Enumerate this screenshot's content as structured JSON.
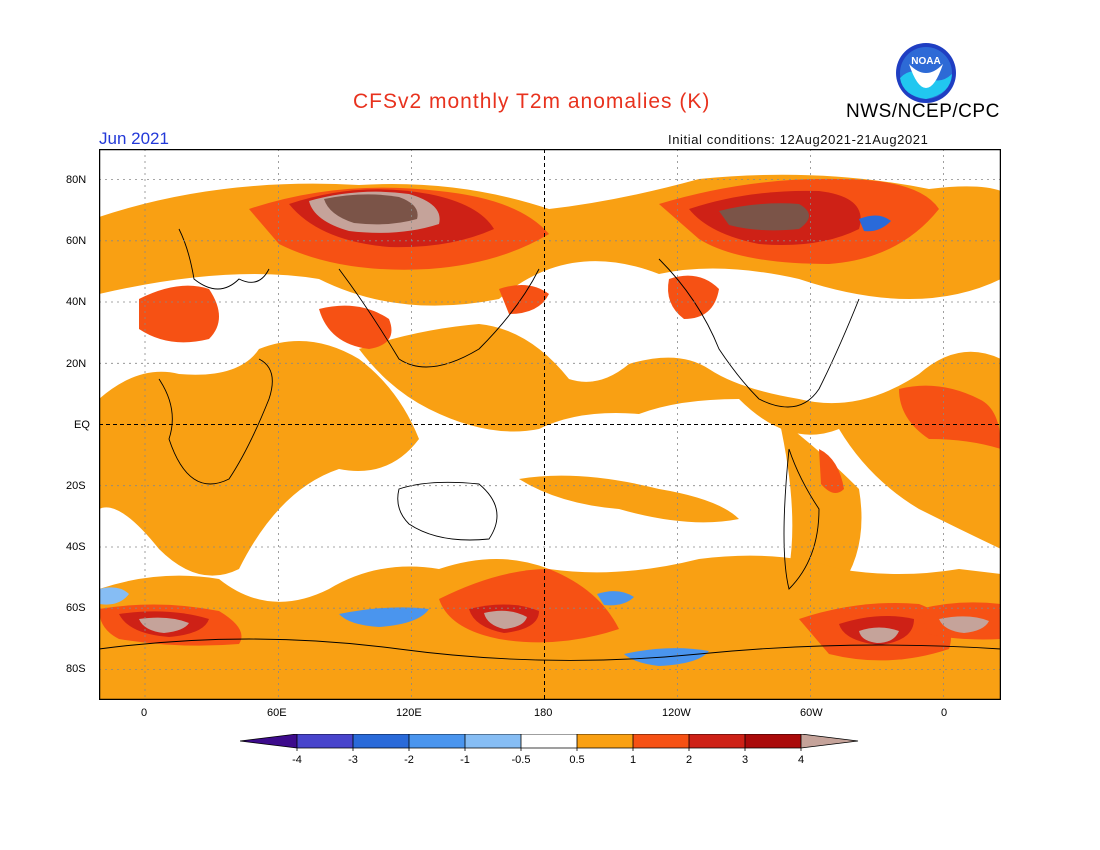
{
  "title": "CFSv2 monthly T2m anomalies (K)",
  "agency": "NWS/NCEP/CPC",
  "logo_text": "NOAA",
  "valid_month": "Jun 2021",
  "initial_conditions": "Initial conditions: 12Aug2021-21Aug2021",
  "map": {
    "projection": "equirectangular",
    "lon_center": "180",
    "lat_labels": [
      "80N",
      "60N",
      "40N",
      "20N",
      "EQ",
      "20S",
      "40S",
      "60S",
      "80S"
    ],
    "lon_labels": [
      "0",
      "60E",
      "120E",
      "180",
      "120W",
      "60W",
      "0"
    ]
  },
  "legend": {
    "ticks": [
      "-4",
      "-3",
      "-2",
      "-1",
      "-0.5",
      "0.5",
      "1",
      "2",
      "3",
      "4"
    ],
    "colors": [
      "#3d0b8c",
      "#4844cc",
      "#2a6ad9",
      "#4a95ee",
      "#86bdf4",
      "#ffffff",
      "#f9a013",
      "#f65114",
      "#ce2116",
      "#aa0a0a",
      "#c5a39a",
      "#7b5448"
    ]
  },
  "colors": {
    "title": "#e8321e",
    "month": "#2339d8"
  }
}
